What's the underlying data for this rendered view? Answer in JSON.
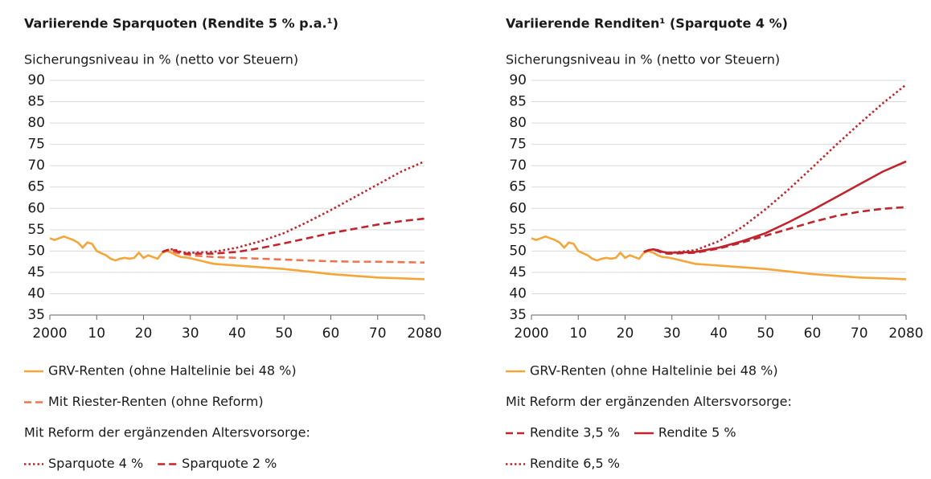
{
  "chart_data": [
    {
      "type": "line",
      "title": "Variierende Sparquoten (Rendite 5 % p.a.¹)",
      "y_label": "Sicherungsniveau in % (netto vor Steuern)",
      "legend_note": "Mit Reform der ergänzenden Altersvorsorge:",
      "x": [
        2000,
        2001,
        2002,
        2003,
        2004,
        2005,
        2006,
        2007,
        2008,
        2009,
        2010,
        2011,
        2012,
        2013,
        2014,
        2015,
        2016,
        2017,
        2018,
        2019,
        2020,
        2021,
        2022,
        2023,
        2024,
        2025,
        2026,
        2027,
        2028,
        2029,
        2030,
        2035,
        2040,
        2045,
        2050,
        2055,
        2060,
        2065,
        2070,
        2075,
        2080
      ],
      "xlim": [
        2000,
        2080
      ],
      "xticks": [
        2000,
        {
          "value": 2010,
          "label": "10"
        },
        {
          "value": 2020,
          "label": "20"
        },
        {
          "value": 2030,
          "label": "30"
        },
        {
          "value": 2040,
          "label": "40"
        },
        {
          "value": 2050,
          "label": "50"
        },
        {
          "value": 2060,
          "label": "60"
        },
        {
          "value": 2070,
          "label": "70"
        },
        2080
      ],
      "ylim": [
        35,
        90
      ],
      "yticks": [
        35,
        40,
        45,
        50,
        55,
        60,
        65,
        70,
        75,
        80,
        85,
        90
      ],
      "grid": true,
      "series": [
        {
          "name": "GRV-Renten (ohne Haltelinie bei 48 %)",
          "color": "#f5a53a",
          "dash": "solid",
          "values": [
            53,
            52.6,
            53,
            53.4,
            53,
            52.6,
            52,
            50.8,
            52,
            51.7,
            50,
            49.5,
            49,
            48.2,
            47.8,
            48.2,
            48.4,
            48.2,
            48.4,
            49.6,
            48.4,
            49,
            48.6,
            48.2,
            49.6,
            50,
            49.6,
            49,
            48.6,
            48.5,
            48.3,
            47,
            46.6,
            46.2,
            45.8,
            45.2,
            44.6,
            44.2,
            43.8,
            43.6,
            43.4
          ]
        },
        {
          "name": "Mit Riester-Renten (ohne Reform)",
          "color": "#ef7350",
          "dash": "dashed",
          "values": [
            null,
            null,
            null,
            null,
            null,
            null,
            null,
            null,
            null,
            null,
            null,
            null,
            null,
            null,
            null,
            null,
            null,
            null,
            null,
            null,
            null,
            null,
            null,
            null,
            49.8,
            50.2,
            50,
            49.6,
            49.4,
            49.2,
            49,
            48.6,
            48.4,
            48.2,
            48,
            47.8,
            47.6,
            47.5,
            47.5,
            47.4,
            47.3
          ]
        },
        {
          "name": "Sparquote 4 %",
          "color": "#c0252d",
          "dash": "dotted",
          "values": [
            null,
            null,
            null,
            null,
            null,
            null,
            null,
            null,
            null,
            null,
            null,
            null,
            null,
            null,
            null,
            null,
            null,
            null,
            null,
            null,
            null,
            null,
            null,
            null,
            49.8,
            50.2,
            50.4,
            50.2,
            49.8,
            49.6,
            49.6,
            49.8,
            50.8,
            52.3,
            54.2,
            56.8,
            59.6,
            62.6,
            65.6,
            68.6,
            71
          ]
        },
        {
          "name": "Sparquote 2 %",
          "color": "#c0252d",
          "dash": "dashed",
          "values": [
            null,
            null,
            null,
            null,
            null,
            null,
            null,
            null,
            null,
            null,
            null,
            null,
            null,
            null,
            null,
            null,
            null,
            null,
            null,
            null,
            null,
            null,
            null,
            null,
            49.8,
            50.2,
            50.4,
            50,
            49.6,
            49.4,
            49.4,
            49.4,
            49.8,
            50.7,
            51.8,
            53,
            54.2,
            55.2,
            56.2,
            57,
            57.6
          ]
        }
      ]
    },
    {
      "type": "line",
      "title": "Variierende Renditen¹ (Sparquote 4 %)",
      "y_label": "Sicherungsniveau in % (netto vor Steuern)",
      "legend_note": "Mit Reform der ergänzenden Altersvorsorge:",
      "x": [
        2000,
        2001,
        2002,
        2003,
        2004,
        2005,
        2006,
        2007,
        2008,
        2009,
        2010,
        2011,
        2012,
        2013,
        2014,
        2015,
        2016,
        2017,
        2018,
        2019,
        2020,
        2021,
        2022,
        2023,
        2024,
        2025,
        2026,
        2027,
        2028,
        2029,
        2030,
        2035,
        2040,
        2045,
        2050,
        2055,
        2060,
        2065,
        2070,
        2075,
        2080
      ],
      "xlim": [
        2000,
        2080
      ],
      "xticks": [
        2000,
        {
          "value": 2010,
          "label": "10"
        },
        {
          "value": 2020,
          "label": "20"
        },
        {
          "value": 2030,
          "label": "30"
        },
        {
          "value": 2040,
          "label": "40"
        },
        {
          "value": 2050,
          "label": "50"
        },
        {
          "value": 2060,
          "label": "60"
        },
        {
          "value": 2070,
          "label": "70"
        },
        2080
      ],
      "ylim": [
        35,
        90
      ],
      "yticks": [
        35,
        40,
        45,
        50,
        55,
        60,
        65,
        70,
        75,
        80,
        85,
        90
      ],
      "grid": true,
      "series": [
        {
          "name": "GRV-Renten (ohne Haltelinie bei 48 %)",
          "color": "#f5a53a",
          "dash": "solid",
          "values": [
            53,
            52.6,
            53,
            53.4,
            53,
            52.6,
            52,
            50.8,
            52,
            51.7,
            50,
            49.5,
            49,
            48.2,
            47.8,
            48.2,
            48.4,
            48.2,
            48.4,
            49.6,
            48.4,
            49,
            48.6,
            48.2,
            49.6,
            50,
            49.6,
            49,
            48.6,
            48.5,
            48.3,
            47,
            46.6,
            46.2,
            45.8,
            45.2,
            44.6,
            44.2,
            43.8,
            43.6,
            43.4
          ]
        },
        {
          "name": "Rendite 3,5 %",
          "color": "#c0252d",
          "dash": "dashed",
          "values": [
            null,
            null,
            null,
            null,
            null,
            null,
            null,
            null,
            null,
            null,
            null,
            null,
            null,
            null,
            null,
            null,
            null,
            null,
            null,
            null,
            null,
            null,
            null,
            null,
            49.8,
            50.2,
            50.4,
            50,
            49.6,
            49.4,
            49.4,
            49.6,
            50.6,
            52,
            53.6,
            55.2,
            56.8,
            58.2,
            59.2,
            59.9,
            60.3
          ]
        },
        {
          "name": "Rendite 5 %",
          "color": "#c0252d",
          "dash": "solid",
          "values": [
            null,
            null,
            null,
            null,
            null,
            null,
            null,
            null,
            null,
            null,
            null,
            null,
            null,
            null,
            null,
            null,
            null,
            null,
            null,
            null,
            null,
            null,
            null,
            null,
            49.8,
            50.2,
            50.4,
            50.2,
            49.8,
            49.6,
            49.6,
            49.8,
            50.8,
            52.3,
            54.2,
            56.8,
            59.6,
            62.6,
            65.6,
            68.6,
            71
          ]
        },
        {
          "name": "Rendite 6,5 %",
          "color": "#c0252d",
          "dash": "dotted",
          "values": [
            null,
            null,
            null,
            null,
            null,
            null,
            null,
            null,
            null,
            null,
            null,
            null,
            null,
            null,
            null,
            null,
            null,
            null,
            null,
            null,
            null,
            null,
            null,
            null,
            49.8,
            50.2,
            50.4,
            50.2,
            49.8,
            49.6,
            49.6,
            50.2,
            52.3,
            55.6,
            59.8,
            64.5,
            69.6,
            74.8,
            79.8,
            84.6,
            89
          ]
        }
      ]
    }
  ]
}
